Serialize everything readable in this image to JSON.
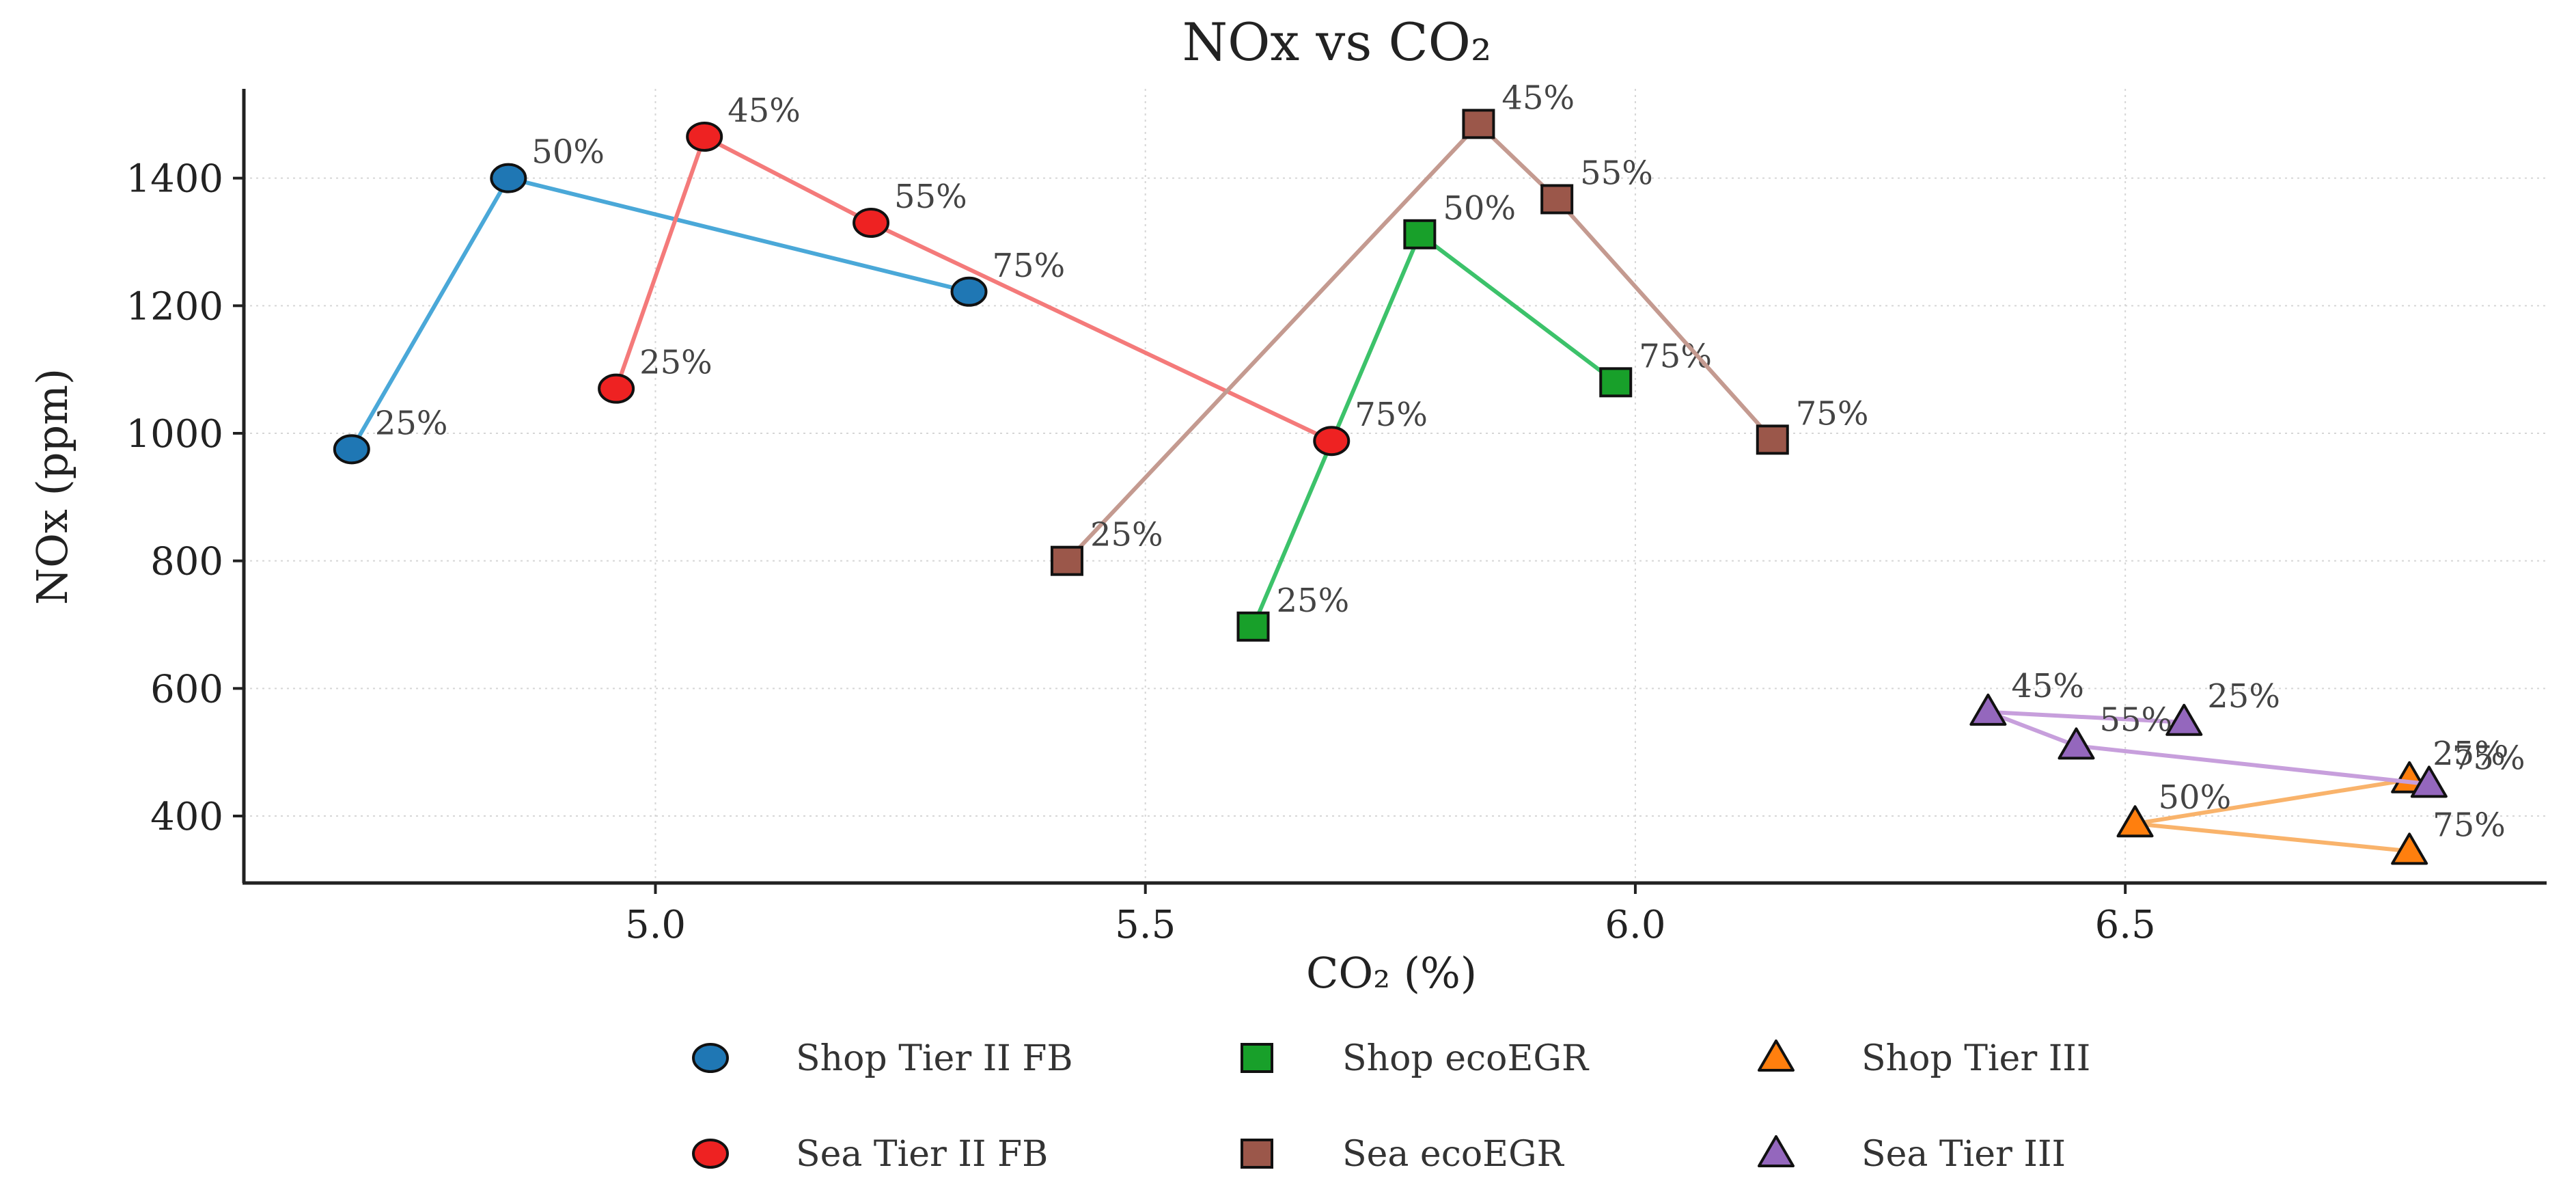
{
  "chart_data": {
    "type": "line",
    "title": "NOx vs CO₂",
    "xlabel": "CO₂ (%)",
    "ylabel": "NOx (ppm)",
    "xlim": [
      4.58,
      6.93
    ],
    "ylim": [
      295,
      1540
    ],
    "xticks": [
      5.0,
      5.5,
      6.0,
      6.5
    ],
    "xtick_labels": [
      "5.0",
      "5.5",
      "6.0",
      "6.5"
    ],
    "yticks": [
      400,
      600,
      800,
      1000,
      1200,
      1400
    ],
    "ytick_labels": [
      "400",
      "600",
      "800",
      "1000",
      "1200",
      "1400"
    ],
    "grid": true,
    "legend_position": "bottom",
    "series": [
      {
        "name": "Shop Tier II FB",
        "marker": "circle",
        "line_color": "#4aa8d8",
        "marker_color": "#1f77b4",
        "points": [
          {
            "x": 4.69,
            "y": 975,
            "label": "25%"
          },
          {
            "x": 4.85,
            "y": 1400,
            "label": "50%"
          },
          {
            "x": 5.32,
            "y": 1222,
            "label": "75%"
          }
        ]
      },
      {
        "name": "Shop ecoEGR",
        "marker": "square",
        "line_color": "#3cc26a",
        "marker_color": "#18a02a",
        "points": [
          {
            "x": 5.61,
            "y": 697,
            "label": "25%"
          },
          {
            "x": 5.78,
            "y": 1312,
            "label": "50%"
          },
          {
            "x": 5.98,
            "y": 1080,
            "label": "75%"
          }
        ]
      },
      {
        "name": "Shop Tier III",
        "marker": "triangle",
        "line_color": "#f9b36b",
        "marker_color": "#ff7f0e",
        "points": [
          {
            "x": 6.79,
            "y": 457,
            "label": "25%"
          },
          {
            "x": 6.51,
            "y": 388,
            "label": "50%"
          },
          {
            "x": 6.79,
            "y": 345,
            "label": "75%"
          }
        ]
      },
      {
        "name": "Sea Tier II FB",
        "marker": "circle",
        "line_color": "#f47a7a",
        "marker_color": "#ee2222",
        "points": [
          {
            "x": 4.96,
            "y": 1070,
            "label": "25%"
          },
          {
            "x": 5.05,
            "y": 1465,
            "label": "45%"
          },
          {
            "x": 5.22,
            "y": 1330,
            "label": "55%"
          },
          {
            "x": 5.69,
            "y": 988,
            "label": "75%"
          }
        ]
      },
      {
        "name": "Sea ecoEGR",
        "marker": "square",
        "line_color": "#c49a90",
        "marker_color": "#9b574a",
        "points": [
          {
            "x": 5.42,
            "y": 800,
            "label": "25%"
          },
          {
            "x": 5.84,
            "y": 1485,
            "label": "45%"
          },
          {
            "x": 5.92,
            "y": 1367,
            "label": "55%"
          },
          {
            "x": 6.14,
            "y": 990,
            "label": "75%"
          }
        ]
      },
      {
        "name": "Sea Tier III",
        "marker": "triangle",
        "line_color": "#c79fdc",
        "marker_color": "#9467bd",
        "points": [
          {
            "x": 6.56,
            "y": 547,
            "label": "25%"
          },
          {
            "x": 6.36,
            "y": 563,
            "label": "45%"
          },
          {
            "x": 6.45,
            "y": 510,
            "label": "55%"
          },
          {
            "x": 6.81,
            "y": 450,
            "label": "75%"
          }
        ]
      }
    ]
  }
}
